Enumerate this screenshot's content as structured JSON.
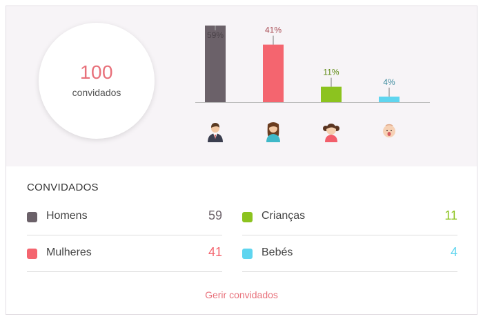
{
  "summary": {
    "total": "100",
    "total_label": "convidados"
  },
  "chart_data": {
    "type": "bar",
    "categories": [
      "Homens",
      "Mulheres",
      "Crianças",
      "Bebés"
    ],
    "values": [
      59,
      41,
      11,
      4
    ],
    "labels": [
      "59%",
      "41%",
      "11%",
      "4%"
    ],
    "colors": [
      "#6b6169",
      "#f4656f",
      "#8cc31f",
      "#5fd5ef"
    ],
    "icons": [
      "man-icon",
      "woman-icon",
      "girl-icon",
      "baby-icon"
    ],
    "ylim": [
      0,
      59
    ]
  },
  "legend": {
    "title": "CONVIDADOS",
    "items": [
      {
        "label": "Homens",
        "value": "59",
        "color": "#6b6169",
        "value_color": "#6b6169"
      },
      {
        "label": "Crianças",
        "value": "11",
        "color": "#8cc31f",
        "value_color": "#8cc31f"
      },
      {
        "label": "Mulheres",
        "value": "41",
        "color": "#f4656f",
        "value_color": "#f4656f"
      },
      {
        "label": "Bebés",
        "value": "4",
        "color": "#5fd5ef",
        "value_color": "#5fd5ef"
      }
    ]
  },
  "actions": {
    "manage_label": "Gerir convidados"
  }
}
